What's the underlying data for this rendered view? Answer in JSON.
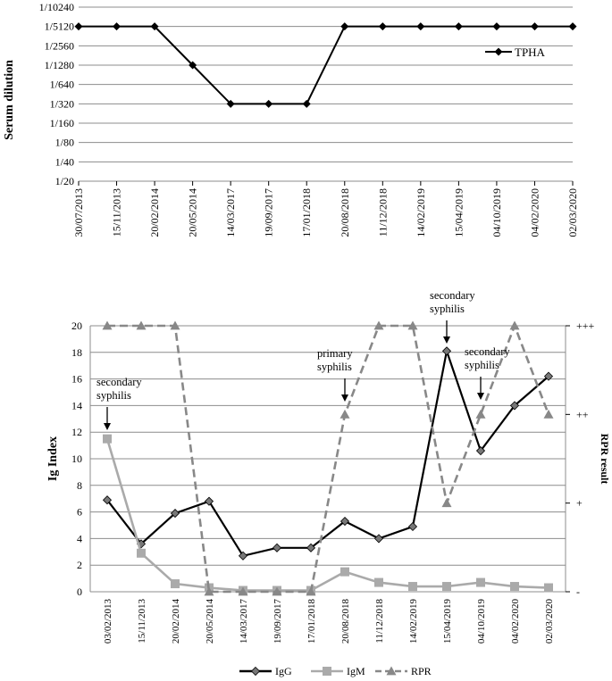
{
  "chart_data": [
    {
      "type": "line",
      "ylabel": "Serum dilution",
      "y_scale": "log2",
      "y_ticks": [
        "1/20",
        "1/40",
        "1/80",
        "1/160",
        "1/320",
        "1/640",
        "1/1280",
        "1/2560",
        "1/5120",
        "1/10240"
      ],
      "categories": [
        "30/07/2013",
        "15/11/2013",
        "20/02/2014",
        "20/05/2014",
        "14/03/2017",
        "19/09/2017",
        "17/01/2018",
        "20/08/2018",
        "11/12/2018",
        "14/02/2019",
        "15/04/2019",
        "04/10/2019",
        "04/02/2020",
        "02/03/2020"
      ],
      "series": [
        {
          "name": "TPHA",
          "color": "#000000",
          "marker": "diamond",
          "values": [
            "1/5120",
            "1/5120",
            "1/5120",
            "1/1280",
            "1/320",
            "1/320",
            "1/320",
            "1/5120",
            "1/5120",
            "1/5120",
            "1/5120",
            "1/5120",
            "1/5120",
            "1/5120"
          ]
        }
      ],
      "legend_position": "top-right",
      "grid": true
    },
    {
      "type": "line",
      "ylabel": "Ig Index",
      "y2label": "RPR result",
      "ylim": [
        0,
        20
      ],
      "y_ticks": [
        0,
        2,
        4,
        6,
        8,
        10,
        12,
        14,
        16,
        18,
        20
      ],
      "y2_ticks": [
        "-",
        "+",
        "++",
        "+++"
      ],
      "categories": [
        "03/02/2013",
        "15/11/2013",
        "20/02/2014",
        "20/05/2014",
        "14/03/2017",
        "19/09/2017",
        "17/01/2018",
        "20/08/2018",
        "11/12/2018",
        "14/02/2019",
        "15/04/2019",
        "04/10/2019",
        "04/02/2020",
        "02/03/2020"
      ],
      "series": [
        {
          "name": "IgG",
          "color": "#000000",
          "marker": "diamond",
          "axis": "left",
          "values": [
            6.9,
            3.6,
            5.9,
            6.8,
            2.7,
            3.3,
            3.3,
            5.3,
            4.0,
            4.9,
            18.1,
            10.6,
            14.0,
            16.2
          ]
        },
        {
          "name": "IgM",
          "color": "#aaaaaa",
          "marker": "square",
          "axis": "left",
          "values": [
            11.5,
            2.9,
            0.6,
            0.3,
            0.1,
            0.1,
            0.1,
            1.5,
            0.7,
            0.4,
            0.4,
            0.7,
            0.4,
            0.3
          ]
        },
        {
          "name": "RPR",
          "color": "#888888",
          "marker": "triangle",
          "dashed": true,
          "axis": "right",
          "values": [
            "+++",
            "+++",
            "+++",
            "-",
            "-",
            "-",
            "-",
            "++",
            "+++",
            "+++",
            "+",
            "++",
            "+++",
            "++"
          ]
        }
      ],
      "annotations": [
        {
          "text_lines": [
            "secondary",
            "syphilis"
          ],
          "category": "03/02/2013"
        },
        {
          "text_lines": [
            "primary",
            "syphilis"
          ],
          "category": "20/08/2018"
        },
        {
          "text_lines": [
            "secondary",
            "syphilis"
          ],
          "category": "15/04/2019"
        },
        {
          "text_lines": [
            "secondary",
            "syphilis"
          ],
          "category": "04/10/2019"
        }
      ],
      "legend_position": "bottom",
      "grid": true
    }
  ]
}
